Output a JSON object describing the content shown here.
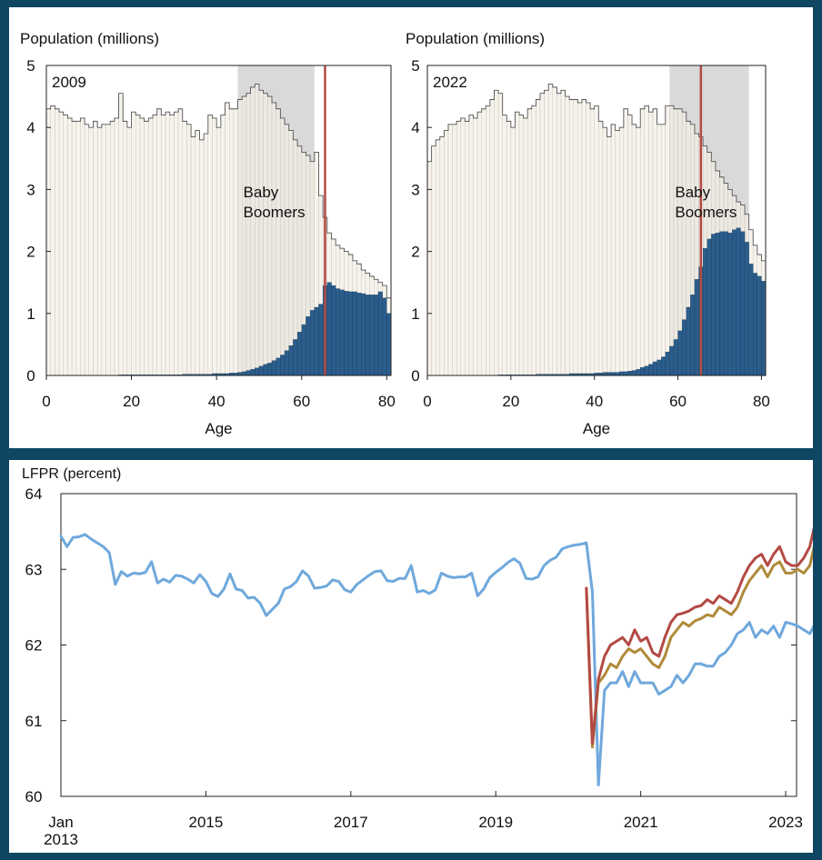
{
  "chart_data": [
    {
      "type": "bar",
      "panel_label": "2009",
      "ylabel": "Population (millions)",
      "xlabel": "Age",
      "xlim": [
        0,
        81
      ],
      "ylim": [
        0,
        5
      ],
      "xticks": [
        "0",
        "20",
        "40",
        "60",
        "80"
      ],
      "yticks": [
        "0",
        "1",
        "2",
        "3",
        "4",
        "5"
      ],
      "annotation": [
        "Baby",
        "Boomers"
      ],
      "shaded_range": [
        45,
        63
      ],
      "reference_line_age": 65,
      "series": [
        {
          "name": "Population",
          "values": [
            4.3,
            4.35,
            4.3,
            4.25,
            4.2,
            4.15,
            4.1,
            4.1,
            4.15,
            4.05,
            4.0,
            4.1,
            4.0,
            4.05,
            4.05,
            4.1,
            4.15,
            4.55,
            4.1,
            4.0,
            4.25,
            4.2,
            4.15,
            4.1,
            4.15,
            4.2,
            4.3,
            4.2,
            4.25,
            4.2,
            4.25,
            4.3,
            4.1,
            4.05,
            3.85,
            3.95,
            3.8,
            3.9,
            4.2,
            4.15,
            4.0,
            4.2,
            4.4,
            4.3,
            4.3,
            4.45,
            4.5,
            4.55,
            4.65,
            4.7,
            4.6,
            4.55,
            4.5,
            4.4,
            4.3,
            4.15,
            4.05,
            3.95,
            3.8,
            3.7,
            3.6,
            3.55,
            3.45,
            3.6,
            2.9,
            2.55,
            2.3,
            2.2,
            2.1,
            2.05,
            2.0,
            1.95,
            1.85,
            1.8,
            1.7,
            1.65,
            1.6,
            1.55,
            1.5,
            1.45,
            1.25
          ]
        },
        {
          "name": "Retired",
          "values": [
            0,
            0,
            0,
            0,
            0,
            0,
            0,
            0,
            0,
            0,
            0,
            0,
            0,
            0,
            0,
            0,
            0,
            0.01,
            0.01,
            0.01,
            0.01,
            0.01,
            0.01,
            0.01,
            0.01,
            0.01,
            0.01,
            0.01,
            0.01,
            0.01,
            0.01,
            0.01,
            0.02,
            0.02,
            0.02,
            0.02,
            0.02,
            0.02,
            0.02,
            0.03,
            0.03,
            0.03,
            0.03,
            0.04,
            0.04,
            0.05,
            0.06,
            0.08,
            0.1,
            0.12,
            0.15,
            0.18,
            0.2,
            0.24,
            0.28,
            0.33,
            0.4,
            0.48,
            0.58,
            0.7,
            0.82,
            0.95,
            1.05,
            1.1,
            1.15,
            1.45,
            1.5,
            1.45,
            1.4,
            1.38,
            1.36,
            1.35,
            1.35,
            1.33,
            1.32,
            1.3,
            1.3,
            1.3,
            1.35,
            1.25,
            1.0
          ]
        }
      ]
    },
    {
      "type": "bar",
      "panel_label": "2022",
      "ylabel": "Population (millions)",
      "xlabel": "Age",
      "xlim": [
        0,
        81
      ],
      "ylim": [
        0,
        5
      ],
      "xticks": [
        "0",
        "20",
        "40",
        "60",
        "80"
      ],
      "yticks": [
        "0",
        "1",
        "2",
        "3",
        "4",
        "5"
      ],
      "annotation": [
        "Baby",
        "Boomers"
      ],
      "shaded_range": [
        58,
        77
      ],
      "reference_line_age": 65,
      "series": [
        {
          "name": "Population",
          "values": [
            3.45,
            3.7,
            3.8,
            3.85,
            3.95,
            4.05,
            4.05,
            4.1,
            4.15,
            4.1,
            4.2,
            4.15,
            4.25,
            4.3,
            4.35,
            4.45,
            4.6,
            4.55,
            4.2,
            4.1,
            4.0,
            4.25,
            4.2,
            4.15,
            4.3,
            4.35,
            4.45,
            4.55,
            4.6,
            4.7,
            4.65,
            4.55,
            4.6,
            4.5,
            4.45,
            4.45,
            4.4,
            4.45,
            4.4,
            4.3,
            4.35,
            4.1,
            4.0,
            3.85,
            4.05,
            3.95,
            4.0,
            4.3,
            4.2,
            4.05,
            4.0,
            4.3,
            4.35,
            4.25,
            4.3,
            4.05,
            4.05,
            4.35,
            4.35,
            4.3,
            4.3,
            4.25,
            4.1,
            4.05,
            3.9,
            3.85,
            3.7,
            3.6,
            3.45,
            3.3,
            3.2,
            3.1,
            3.0,
            2.9,
            2.8,
            2.75,
            2.6,
            2.35,
            2.1,
            1.95,
            1.85
          ]
        },
        {
          "name": "Retired",
          "values": [
            0,
            0,
            0,
            0,
            0,
            0,
            0,
            0,
            0,
            0,
            0,
            0,
            0,
            0,
            0,
            0,
            0,
            0.01,
            0.01,
            0.01,
            0.01,
            0.01,
            0.01,
            0.01,
            0.01,
            0.01,
            0.02,
            0.02,
            0.02,
            0.02,
            0.02,
            0.02,
            0.02,
            0.02,
            0.03,
            0.03,
            0.03,
            0.03,
            0.03,
            0.03,
            0.04,
            0.04,
            0.05,
            0.05,
            0.05,
            0.05,
            0.06,
            0.06,
            0.07,
            0.08,
            0.1,
            0.13,
            0.15,
            0.18,
            0.22,
            0.25,
            0.3,
            0.38,
            0.47,
            0.58,
            0.72,
            0.9,
            1.1,
            1.3,
            1.55,
            1.75,
            2.05,
            2.2,
            2.28,
            2.3,
            2.32,
            2.32,
            2.3,
            2.35,
            2.38,
            2.32,
            2.15,
            1.8,
            1.65,
            1.6,
            1.52
          ]
        }
      ]
    },
    {
      "type": "line",
      "ylabel": "LFPR (percent)",
      "x_start": "Jan 2013",
      "ylim": [
        60,
        64
      ],
      "yticks": [
        "60",
        "61",
        "62",
        "63",
        "64"
      ],
      "xticks": [
        {
          "label": "Jan",
          "label2": "2013",
          "x": 2013.0
        },
        {
          "label": "2015",
          "x": 2015.0
        },
        {
          "label": "2017",
          "x": 2017.0
        },
        {
          "label": "2019",
          "x": 2019.0
        },
        {
          "label": "2021",
          "x": 2021.0
        },
        {
          "label": "2023",
          "x": 2023.0
        }
      ],
      "xlim": [
        2013.0,
        2023.15
      ],
      "series": [
        {
          "name": "blue",
          "color": "#6fa8dc",
          "start": 2013.0,
          "values": [
            63.44,
            63.3,
            63.42,
            63.43,
            63.46,
            63.4,
            63.35,
            63.3,
            63.22,
            62.8,
            62.97,
            62.91,
            62.95,
            62.94,
            62.96,
            63.1,
            62.82,
            62.87,
            62.83,
            62.92,
            62.91,
            62.87,
            62.82,
            62.93,
            62.84,
            62.68,
            62.64,
            62.74,
            62.94,
            62.74,
            62.72,
            62.62,
            62.63,
            62.55,
            62.39,
            62.47,
            62.55,
            62.74,
            62.77,
            62.84,
            62.98,
            62.91,
            62.75,
            62.76,
            62.78,
            62.86,
            62.84,
            62.73,
            62.7,
            62.8,
            62.86,
            62.92,
            62.97,
            62.98,
            62.85,
            62.84,
            62.88,
            62.88,
            63.05,
            62.7,
            62.72,
            62.68,
            62.73,
            62.95,
            62.91,
            62.89,
            62.9,
            62.9,
            62.95,
            62.65,
            62.74,
            62.89,
            62.96,
            63.02,
            63.09,
            63.14,
            63.08,
            62.88,
            62.87,
            62.9,
            63.05,
            63.12,
            63.16,
            63.27,
            63.3,
            63.32,
            63.33,
            63.35,
            62.7,
            60.15,
            61.4,
            61.5,
            61.5,
            61.65,
            61.45,
            61.65,
            61.5,
            61.5,
            61.5,
            61.35,
            61.4,
            61.45,
            61.6,
            61.5,
            61.6,
            61.75,
            61.75,
            61.72,
            61.72,
            61.85,
            61.9,
            62.0,
            62.15,
            62.2,
            62.3,
            62.1,
            62.2,
            62.15,
            62.25,
            62.1,
            62.3,
            62.28,
            62.25,
            62.2,
            62.15,
            62.3,
            62.35,
            62.4,
            62.45
          ]
        },
        {
          "name": "gold",
          "color": "#b08a3a",
          "start": 2020.25,
          "values": [
            62.75,
            60.65,
            61.5,
            61.6,
            61.75,
            61.7,
            61.85,
            61.95,
            61.9,
            61.95,
            61.85,
            61.75,
            61.7,
            61.85,
            62.1,
            62.2,
            62.3,
            62.25,
            62.32,
            62.35,
            62.4,
            62.38,
            62.5,
            62.45,
            62.4,
            62.5,
            62.7,
            62.85,
            62.95,
            63.05,
            62.9,
            63.05,
            63.1,
            62.95,
            62.95,
            63.0,
            62.95,
            63.05,
            63.4,
            63.45
          ]
        },
        {
          "name": "red",
          "color": "#b34a44",
          "start": 2020.25,
          "values": [
            62.75,
            60.7,
            61.55,
            61.85,
            62.0,
            62.05,
            62.1,
            62.0,
            62.2,
            62.05,
            62.1,
            61.9,
            61.85,
            62.1,
            62.3,
            62.4,
            62.42,
            62.45,
            62.5,
            62.52,
            62.6,
            62.55,
            62.65,
            62.6,
            62.55,
            62.7,
            62.9,
            63.05,
            63.15,
            63.2,
            63.05,
            63.2,
            63.3,
            63.1,
            63.05,
            63.05,
            63.15,
            63.3,
            63.65,
            63.7
          ]
        }
      ]
    }
  ]
}
